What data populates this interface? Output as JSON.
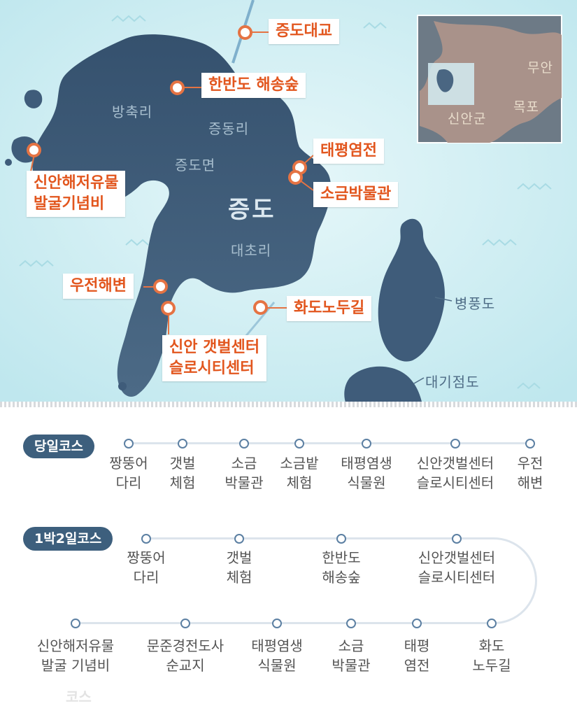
{
  "map": {
    "main_island": "증도",
    "places": {
      "bangchuk": "방축리",
      "jeungdong": "증동리",
      "jeungdo_myeon": "증도면",
      "daecho": "대초리",
      "byeongpung": "병풍도",
      "daegijeom": "대기점도"
    },
    "inset": {
      "muan": "무안",
      "mokpo": "목포",
      "sinan": "신안군"
    },
    "pois": {
      "jeungdo_bridge": "증도대교",
      "hanbando_forest": "한반도  해송숲",
      "taepyeong_saltfarm": "태평염전",
      "salt_museum": "소금박물관",
      "relic_monument_l1": "신안해저유물",
      "relic_monument_l2": "발굴기념비",
      "ujeon_beach": "우전해변",
      "hwado_road": "화도노두길",
      "tidal_center_l1": "신안  갯벌센터",
      "tidal_center_l2": "슬로시티센터"
    }
  },
  "course_day": {
    "label": "당일코스",
    "stops": [
      "짱뚱어\n다리",
      "갯벌\n체험",
      "소금\n박물관",
      "소금밭\n체험",
      "태평염생\n식물원",
      "신안갯벌센터\n슬로시티센터",
      "우전\n해변"
    ]
  },
  "course_overnight": {
    "label": "1박2일코스",
    "row1": [
      "짱뚱어\n다리",
      "갯벌\n체험",
      "한반도\n해송숲",
      "신안갯벌센터\n슬로시티센터"
    ],
    "row2": [
      "신안해저유물\n발굴 기념비",
      "문준경전도사\n순교지",
      "태평염생\n식물원",
      "소금\n박물관",
      "태평\n염전",
      "화도\n노두길"
    ]
  },
  "ghost_text": "코스",
  "colors": {
    "sea": "#cfeef3",
    "land": "#3f5c7a",
    "accent": "#e2561e",
    "dot_border": "#e57343",
    "badge": "#3d5f7d"
  }
}
